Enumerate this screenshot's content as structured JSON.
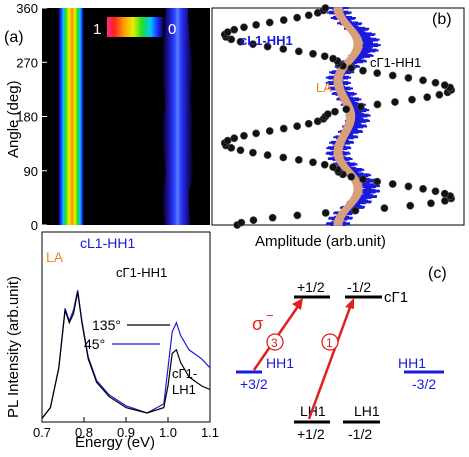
{
  "colors": {
    "blue": "#1a1adf",
    "orange": "#e8871e",
    "red": "#e02020",
    "black": "#000000"
  },
  "panel_a": {
    "label": "(a)",
    "ylabel": "Angle (deg)",
    "yticks": [
      "0",
      "90",
      "180",
      "270",
      "360"
    ],
    "colorbar_min": "1",
    "colorbar_max": "0"
  },
  "panel_b": {
    "label": "(b)",
    "xlabel": "Amplitude (arb.unit)",
    "series_labels": {
      "cl1": "cL1-HH1",
      "cg1": "cΓ1-HH1",
      "la": "LA"
    }
  },
  "panel_pl": {
    "xlabel": "Energy  (eV)",
    "ylabel": "PL Intensity (arb.unit)",
    "xticks": [
      "0.7",
      "0.8",
      "0.9",
      "1.0",
      "1.1"
    ],
    "ann_la": "LA",
    "ann_cl1": "cL1-HH1",
    "ann_cg1": "cΓ1-HH1",
    "ann_cg1_lh1_a": "cΓ1-",
    "ann_cg1_lh1_b": "LH1",
    "legend": [
      {
        "label": "135°"
      },
      {
        "label": "45°"
      }
    ]
  },
  "panel_c": {
    "label": "(c)",
    "plus_half_top": "+1/2",
    "minus_half_top": "-1/2",
    "cg1": "cΓ1",
    "sigma": "σ",
    "sigma_sup": "−",
    "circ3": "3",
    "circ1": "1",
    "hh1_left": "HH1",
    "plus_3_2": "+3/2",
    "hh1_right": "HH1",
    "minus_3_2": "-3/2",
    "lh1_left": "LH1",
    "lh1_right": "LH1",
    "plus_half_bottom": "+1/2",
    "minus_half_bottom": "-1/2"
  },
  "chart_data": [
    {
      "type": "heatmap",
      "ylabel": "Angle (deg)",
      "ylim": [
        0,
        360
      ],
      "colorscale_range": [
        0,
        1
      ],
      "bands": [
        {
          "position": "left",
          "intensity_peak": 1.0,
          "angle_dependence": "none"
        },
        {
          "position": "right",
          "intensity_peak": 0.35,
          "angle_dependence": "weak, bulges near 60, 135, 225, 300 deg"
        }
      ]
    },
    {
      "type": "scatter",
      "xlabel": "Amplitude (arb.unit)",
      "ylim": [
        0,
        360
      ],
      "series": [
        {
          "name": "cΓ1-HH1",
          "angle": [
            0,
            45,
            90,
            135,
            180,
            225,
            270,
            315,
            360
          ],
          "amplitude": [
            0.1,
            0.95,
            0.5,
            0.05,
            0.45,
            0.95,
            0.5,
            0.05,
            0.45
          ]
        },
        {
          "name": "cL1-HH1",
          "angle": [
            0,
            60,
            120,
            180,
            240,
            300,
            360
          ],
          "amplitude": [
            0.5,
            0.62,
            0.5,
            0.58,
            0.5,
            0.62,
            0.5
          ]
        },
        {
          "name": "LA",
          "angle": [
            0,
            60,
            120,
            180,
            240,
            300,
            360
          ],
          "amplitude": [
            0.5,
            0.58,
            0.5,
            0.55,
            0.5,
            0.58,
            0.5
          ]
        }
      ]
    },
    {
      "type": "line",
      "xlabel": "Energy  (eV)",
      "ylabel": "PL Intensity (arb.unit)",
      "xlim": [
        0.7,
        1.1
      ],
      "series": [
        {
          "name": "135°",
          "x": [
            0.7,
            0.72,
            0.74,
            0.755,
            0.765,
            0.775,
            0.785,
            0.795,
            0.81,
            0.83,
            0.86,
            0.9,
            0.95,
            0.99,
            1.0,
            1.01,
            1.02,
            1.03,
            1.05,
            1.08,
            1.1
          ],
          "y": [
            0.02,
            0.08,
            0.3,
            0.62,
            0.55,
            0.6,
            0.72,
            0.55,
            0.35,
            0.22,
            0.14,
            0.08,
            0.05,
            0.08,
            0.2,
            0.38,
            0.4,
            0.33,
            0.25,
            0.2,
            0.18
          ]
        },
        {
          "name": "45°",
          "x": [
            0.7,
            0.72,
            0.74,
            0.755,
            0.765,
            0.775,
            0.785,
            0.795,
            0.81,
            0.83,
            0.86,
            0.9,
            0.95,
            0.99,
            1.0,
            1.01,
            1.02,
            1.03,
            1.05,
            1.08,
            1.1
          ],
          "y": [
            0.02,
            0.08,
            0.3,
            0.63,
            0.56,
            0.62,
            0.73,
            0.56,
            0.36,
            0.23,
            0.15,
            0.09,
            0.05,
            0.1,
            0.3,
            0.5,
            0.55,
            0.48,
            0.4,
            0.35,
            0.3
          ]
        }
      ]
    }
  ]
}
